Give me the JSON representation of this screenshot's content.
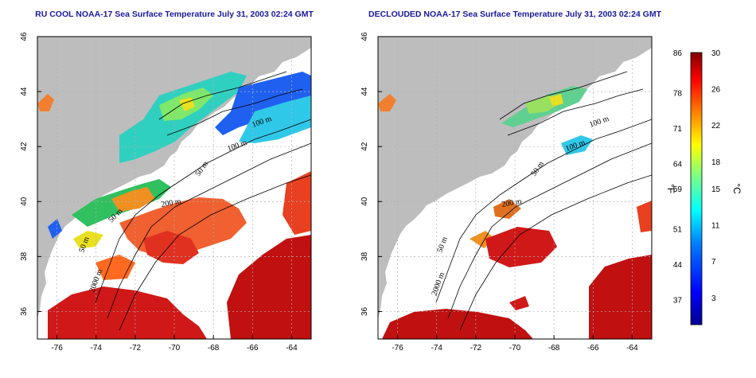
{
  "panels": [
    {
      "id": "left",
      "title": "RU COOL NOAA-17 Sea Surface Temperature July 31, 2003 02:24 GMT",
      "contour_labels": [
        "100 m",
        "100 m",
        "50 m",
        "200 m",
        "50 m",
        "2000 m",
        "50 m"
      ],
      "cloud_cover": "partial"
    },
    {
      "id": "right",
      "title": "DECLOUDED NOAA-17 Sea Surface Temperature July 31, 2003 02:24 GMT",
      "contour_labels": [
        "100 m",
        "100 m",
        "50 m",
        "200 m",
        "50 m",
        "2000 m"
      ],
      "cloud_cover": "removed"
    }
  ],
  "axes": {
    "x_ticks": [
      "-76",
      "-74",
      "-72",
      "-70",
      "-68",
      "-66",
      "-64"
    ],
    "x_values": [
      -76,
      -74,
      -72,
      -70,
      -68,
      -66,
      -64
    ],
    "x_range": [
      -77,
      -63
    ],
    "y_ticks": [
      "46",
      "44",
      "42",
      "40",
      "38",
      "36"
    ],
    "y_values": [
      46,
      44,
      42,
      40,
      38,
      36
    ],
    "y_range": [
      35,
      46
    ],
    "grid": "dotted"
  },
  "colorbar": {
    "fahrenheit_ticks": [
      "86",
      "78",
      "71",
      "64",
      "59",
      "51",
      "44",
      "37"
    ],
    "fahrenheit_unit": "°F",
    "celsius_ticks": [
      "30",
      "26",
      "22",
      "18",
      "15",
      "11",
      "7",
      "3"
    ],
    "celsius_unit": "°C",
    "celsius_range": [
      0,
      30
    ],
    "colormap": [
      "#00008f",
      "#0000ff",
      "#0080ff",
      "#00ffff",
      "#80ff80",
      "#ffff00",
      "#ff8000",
      "#ff0000",
      "#800000"
    ]
  },
  "colors": {
    "land": "#bdbdbd",
    "cloud": "#ffffff",
    "title": "#1a1aa0",
    "contour": "#000000"
  }
}
